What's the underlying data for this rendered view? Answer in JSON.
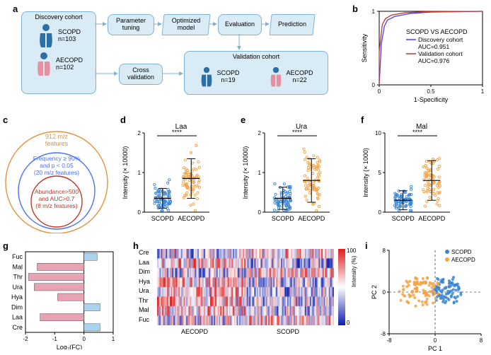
{
  "panels": {
    "a": {
      "label": "a",
      "discovery_title": "Discovery cohort",
      "scopd_label": "SCOPD",
      "scopd_n": "n=103",
      "aecopd_label": "AECOPD",
      "aecopd_n": "n=102",
      "validation_title": "Validation cohort",
      "validation_scopd": "SCOPD",
      "validation_scopd_n": "n=19",
      "validation_aecopd": "AECOPD",
      "validation_aecopd_n": "n=22",
      "step1": "Parameter tuning",
      "step2": "Optimized model",
      "step3": "Evaluation",
      "step4": "Prediction",
      "step_cross": "Cross validation",
      "colors": {
        "box_bg": "#d9ecf6",
        "box_border": "#7fb3d5",
        "person_blue": "#2b6fa5",
        "person_pink": "#e58fa1"
      }
    },
    "b": {
      "label": "b",
      "title": "SCOPD VS AECOPD",
      "legend": [
        {
          "text": "Discovery cohort",
          "color": "#4a3fff"
        },
        {
          "text": "AUC=0.951",
          "color": "#000"
        },
        {
          "text": "Validation cohort",
          "color": "#c0392b"
        },
        {
          "text": "AUC=0.976",
          "color": "#000"
        }
      ],
      "xlabel": "1-Specificity",
      "ylabel": "Sensitivity",
      "xlim": [
        0,
        1
      ],
      "ylim": [
        0,
        1
      ],
      "xticks": [
        0,
        0.5,
        1
      ],
      "yticks": [
        0,
        1
      ],
      "roc_discovery_color": "#4a3fff",
      "roc_validation_color": "#c0392b",
      "roc_discovery": [
        [
          0,
          0
        ],
        [
          0.02,
          0.55
        ],
        [
          0.05,
          0.8
        ],
        [
          0.08,
          0.88
        ],
        [
          0.15,
          0.93
        ],
        [
          0.3,
          0.97
        ],
        [
          0.5,
          0.99
        ],
        [
          1,
          1
        ]
      ],
      "roc_validation": [
        [
          0,
          0
        ],
        [
          0.0,
          0.45
        ],
        [
          0.03,
          0.82
        ],
        [
          0.06,
          0.9
        ],
        [
          0.12,
          0.95
        ],
        [
          0.25,
          0.98
        ],
        [
          0.45,
          0.995
        ],
        [
          1,
          1
        ]
      ]
    },
    "c": {
      "label": "c",
      "rings": [
        {
          "text1": "912 m/z",
          "text2": "features",
          "color": "#e9913d"
        },
        {
          "text1": "Frequency ≥ 90%",
          "text2": "and p < 0.05",
          "text3": "(20 m/z features)",
          "color": "#4a6fff"
        },
        {
          "text1": "Abundance>500",
          "text2": "and AUC>0.7",
          "text3": "(8 m/z features)",
          "color": "#c0392b"
        }
      ]
    },
    "d": {
      "label": "d",
      "title": "Laa",
      "sig": "****",
      "ylabel": "Intensity (× 10000)",
      "ylim": [
        0,
        2
      ],
      "yticks": [
        0,
        1,
        2
      ],
      "groups": [
        "SCOPD",
        "AECOPD"
      ],
      "colors": {
        "SCOPD": "#3b86d4",
        "AECOPD": "#f5a243"
      },
      "means": {
        "SCOPD": 0.35,
        "AECOPD": 0.85
      },
      "sd": {
        "SCOPD": 0.25,
        "AECOPD": 0.5
      }
    },
    "e": {
      "label": "e",
      "title": "Ura",
      "sig": "****",
      "ylabel": "Intensity (× 10000)",
      "ylim": [
        0,
        2
      ],
      "yticks": [
        0,
        1,
        2
      ],
      "groups": [
        "SCOPD",
        "AECOPD"
      ],
      "colors": {
        "SCOPD": "#3b86d4",
        "AECOPD": "#f5a243"
      },
      "means": {
        "SCOPD": 0.35,
        "AECOPD": 0.8
      },
      "sd": {
        "SCOPD": 0.28,
        "AECOPD": 0.55
      }
    },
    "f": {
      "label": "f",
      "title": "Mal",
      "sig": "****",
      "ylabel": "Intensity (× 1000)",
      "ylim": [
        0,
        10
      ],
      "yticks": [
        0,
        5,
        10
      ],
      "groups": [
        "SCOPD",
        "AECOPD"
      ],
      "colors": {
        "SCOPD": "#3b86d4",
        "AECOPD": "#f5a243"
      },
      "means": {
        "SCOPD": 1.5,
        "AECOPD": 4.0
      },
      "sd": {
        "SCOPD": 1.2,
        "AECOPD": 2.5
      }
    },
    "g": {
      "label": "g",
      "xlabel": "Log₂(FC)",
      "xlim": [
        -2,
        1
      ],
      "xticks": [
        -2,
        -1,
        0,
        1
      ],
      "categories": [
        "Fuc",
        "Mal",
        "Thr",
        "Ura",
        "Hya",
        "Dim",
        "Laa",
        "Cre"
      ],
      "values": [
        0.45,
        -1.6,
        -1.9,
        -1.7,
        -0.9,
        0.55,
        -1.5,
        0.55
      ],
      "pos_color": "#a9d3ee",
      "neg_color": "#e8a3b3"
    },
    "h": {
      "label": "h",
      "yticks": [
        "Cre",
        "Laa",
        "Dim",
        "Hya",
        "Ura",
        "Thr",
        "Mal",
        "Fuc"
      ],
      "xgroups": [
        "AECOPD",
        "SCOPD"
      ],
      "cbar_label": "Intensity (%)",
      "cbar_ticks": [
        0,
        100
      ],
      "colormap_low": "#1020b0",
      "colormap_mid": "#ffffff",
      "colormap_high": "#e02020"
    },
    "i": {
      "label": "i",
      "xlabel": "PC 1",
      "ylabel": "PC 2",
      "xlim": [
        -8,
        8
      ],
      "ylim": [
        -8,
        8
      ],
      "xticks": [
        -8,
        0,
        8
      ],
      "yticks": [
        -8,
        0,
        8
      ],
      "legend": [
        {
          "label": "SCOPD",
          "color": "#3b86d4"
        },
        {
          "label": "AECOPD",
          "color": "#f5a243"
        }
      ]
    }
  }
}
